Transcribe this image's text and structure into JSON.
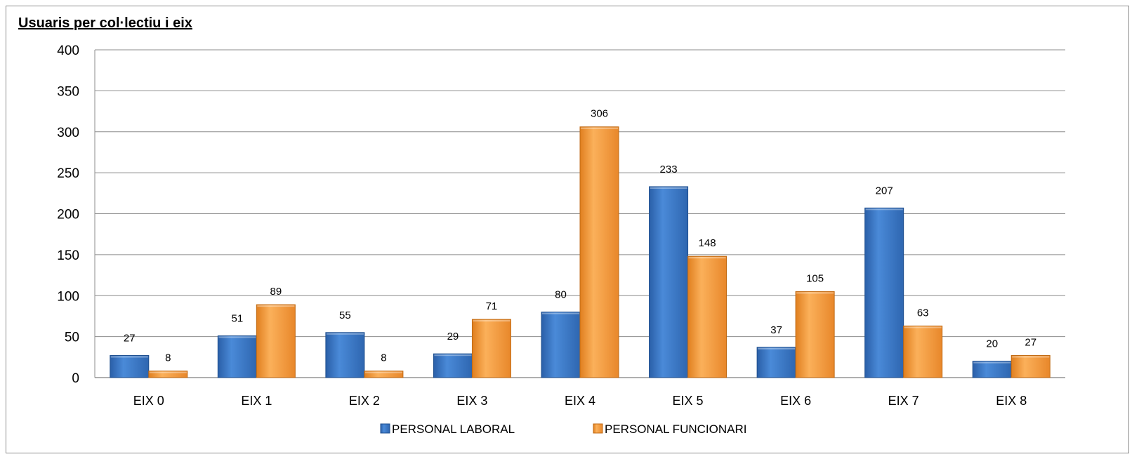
{
  "chart_data": {
    "type": "bar",
    "title": "Usuaris per col·lectiu i eix",
    "xlabel": "",
    "ylabel": "",
    "ylim": [
      0,
      400
    ],
    "yticks": [
      0,
      50,
      100,
      150,
      200,
      250,
      300,
      350,
      400
    ],
    "grid": true,
    "legend_position": "bottom",
    "categories": [
      "EIX 0",
      "EIX 1",
      "EIX 2",
      "EIX 3",
      "EIX 4",
      "EIX 5",
      "EIX 6",
      "EIX 7",
      "EIX 8"
    ],
    "series": [
      {
        "name": "PERSONAL LABORAL",
        "color": "#3a78c9",
        "values": [
          27,
          51,
          55,
          29,
          80,
          233,
          37,
          207,
          20
        ]
      },
      {
        "name": "PERSONAL FUNCIONARI",
        "color": "#f59b3b",
        "values": [
          8,
          89,
          8,
          71,
          306,
          148,
          105,
          63,
          27
        ]
      }
    ]
  }
}
